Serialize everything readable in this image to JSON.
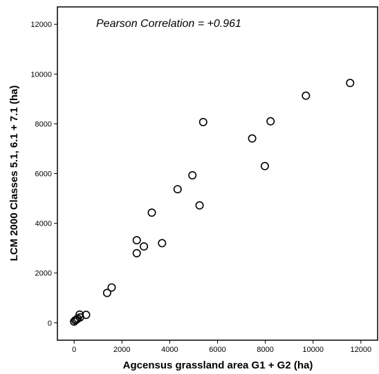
{
  "chart_data": {
    "type": "scatter",
    "xlabel": "Agcensus grassland area G1 + G2 (ha)",
    "ylabel": "LCM 2000 Classes 5.1, 6.1 + 7.1 (ha)",
    "annotation": "Pearson Correlation = +0.961",
    "xlim": [
      -700,
      12700
    ],
    "ylim": [
      -700,
      12700
    ],
    "x_ticks": [
      0,
      2000,
      4000,
      6000,
      8000,
      10000,
      12000
    ],
    "y_ticks": [
      0,
      2000,
      4000,
      6000,
      8000,
      10000,
      12000
    ],
    "x_tick_labels": [
      "0",
      "2000",
      "4000",
      "6000",
      "8000",
      "10000",
      "12000"
    ],
    "y_tick_labels": [
      "0",
      "2000",
      "4000",
      "6000",
      "8000",
      "10000",
      "12000"
    ],
    "grid": false,
    "marker": "open-circle",
    "points": [
      {
        "x": 0,
        "y": 50
      },
      {
        "x": 50,
        "y": 100
      },
      {
        "x": 100,
        "y": 130
      },
      {
        "x": 150,
        "y": 170
      },
      {
        "x": 230,
        "y": 330
      },
      {
        "x": 250,
        "y": 220
      },
      {
        "x": 500,
        "y": 320
      },
      {
        "x": 1380,
        "y": 1200
      },
      {
        "x": 1570,
        "y": 1420
      },
      {
        "x": 2620,
        "y": 3320
      },
      {
        "x": 2620,
        "y": 2800
      },
      {
        "x": 2920,
        "y": 3070
      },
      {
        "x": 3250,
        "y": 4430
      },
      {
        "x": 3680,
        "y": 3200
      },
      {
        "x": 4330,
        "y": 5370
      },
      {
        "x": 4950,
        "y": 5930
      },
      {
        "x": 5250,
        "y": 4720
      },
      {
        "x": 5400,
        "y": 8070
      },
      {
        "x": 7450,
        "y": 7410
      },
      {
        "x": 7980,
        "y": 6300
      },
      {
        "x": 8220,
        "y": 8100
      },
      {
        "x": 9700,
        "y": 9130
      },
      {
        "x": 11550,
        "y": 9640
      }
    ]
  }
}
